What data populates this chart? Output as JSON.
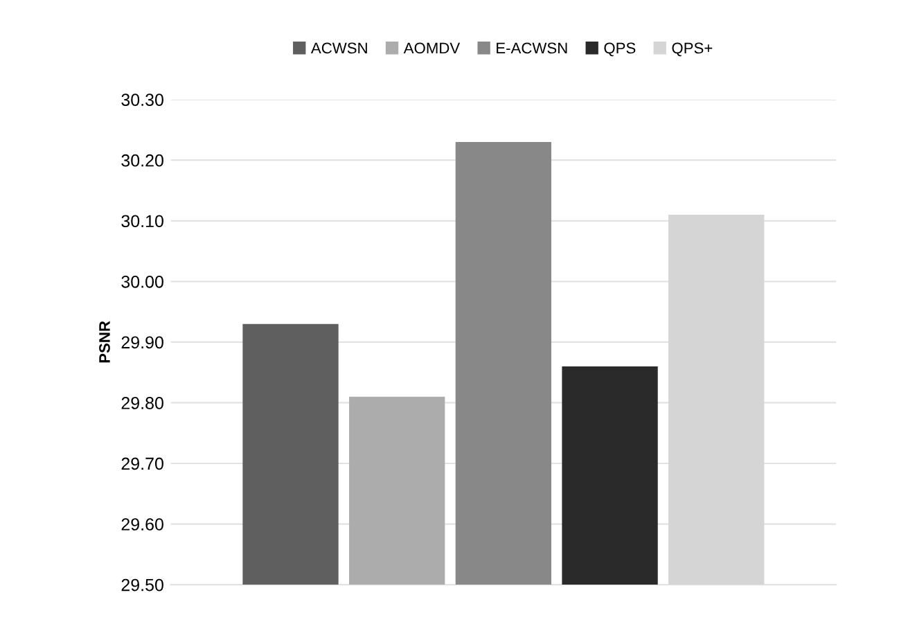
{
  "chart_data": {
    "type": "bar",
    "ylabel": "PSNR",
    "categories": [
      null
    ],
    "series": [
      {
        "name": "ACWSN",
        "color": "#5f5f5f",
        "values": [
          29.93
        ]
      },
      {
        "name": "AOMDV",
        "color": "#acacac",
        "values": [
          29.81
        ]
      },
      {
        "name": "E-ACWSN",
        "color": "#888888",
        "values": [
          30.23
        ]
      },
      {
        "name": "QPS",
        "color": "#2a2a2a",
        "values": [
          29.86
        ]
      },
      {
        "name": "QPS+",
        "color": "#d5d5d5",
        "values": [
          30.11
        ]
      }
    ],
    "ylim": [
      29.5,
      30.3
    ],
    "yticks": [
      {
        "value": 29.5,
        "label": "29.50"
      },
      {
        "value": 29.6,
        "label": "29.60"
      },
      {
        "value": 29.7,
        "label": "29.70"
      },
      {
        "value": 29.8,
        "label": "29.80"
      },
      {
        "value": 29.9,
        "label": "29.90"
      },
      {
        "value": 30.0,
        "label": "30.00"
      },
      {
        "value": 30.1,
        "label": "30.10"
      },
      {
        "value": 30.2,
        "label": "30.20"
      },
      {
        "value": 30.3,
        "label": "30.30"
      }
    ],
    "grid": "y",
    "legend": "top"
  }
}
